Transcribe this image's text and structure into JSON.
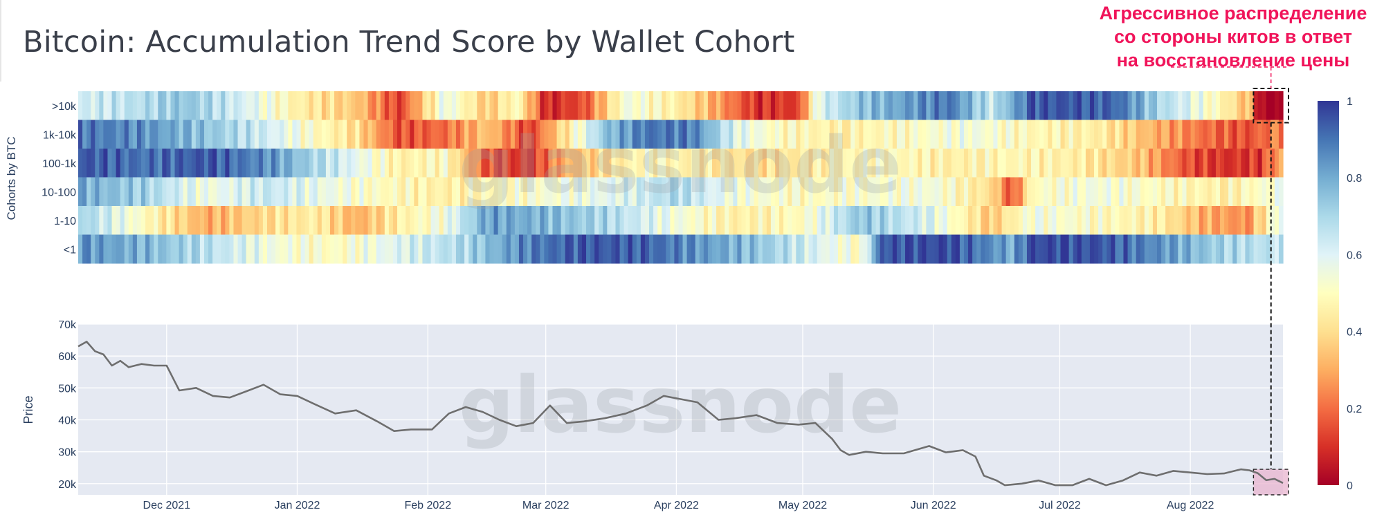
{
  "title": "Bitcoin: Accumulation Trend Score by Wallet Cohort",
  "annotation": {
    "lines": [
      "Агрессивное распределение",
      "со стороны китов в ответ",
      "на восстановление цены"
    ],
    "color": "#f0145a"
  },
  "watermark": "glassnode",
  "colors": {
    "price_line": "#6e6e6e",
    "price_bg": "#e5e9f2",
    "highlight_fill": "#e8b4cf",
    "scale_stops": [
      "#a50026",
      "#d73027",
      "#f46d43",
      "#fdae61",
      "#fee090",
      "#ffffbf",
      "#e0f3f8",
      "#abd9e9",
      "#74add1",
      "#4575b4",
      "#313695"
    ]
  },
  "chart_data": [
    {
      "type": "heatmap",
      "ylabel": "Cohorts by BTC",
      "rows": [
        ">10k",
        "1k-10k",
        "100-1k",
        "10-100",
        "1-10",
        "<1"
      ],
      "x_range": [
        "2021-11-10",
        "2022-08-23"
      ],
      "x_ticks": [
        "Dec 2021",
        "Jan 2022",
        "Feb 2022",
        "Mar 2022",
        "Apr 2022",
        "May 2022",
        "Jun 2022",
        "Jul 2022",
        "Aug 2022"
      ],
      "colorscale": "RdYlBu",
      "zlim": [
        0,
        1
      ],
      "colorbar_ticks": [
        "0",
        "0.2",
        "0.4",
        "0.6",
        "0.8",
        "1"
      ],
      "segments": [
        {
          "row": ">10k",
          "points": [
            [
              "2021-11-10",
              0.62
            ],
            [
              "2021-11-25",
              0.68
            ],
            [
              "2021-12-05",
              0.75
            ],
            [
              "2021-12-20",
              0.6
            ],
            [
              "2022-01-01",
              0.45
            ],
            [
              "2022-01-15",
              0.35
            ],
            [
              "2022-01-25",
              0.12
            ],
            [
              "2022-02-05",
              0.58
            ],
            [
              "2022-02-15",
              0.35
            ],
            [
              "2022-02-22",
              0.5
            ],
            [
              "2022-03-01",
              0.08
            ],
            [
              "2022-03-10",
              0.15
            ],
            [
              "2022-03-20",
              0.55
            ],
            [
              "2022-04-01",
              0.45
            ],
            [
              "2022-04-10",
              0.3
            ],
            [
              "2022-04-20",
              0.1
            ],
            [
              "2022-04-30",
              0.12
            ],
            [
              "2022-05-05",
              0.6
            ],
            [
              "2022-05-15",
              0.75
            ],
            [
              "2022-05-25",
              0.82
            ],
            [
              "2022-06-05",
              0.9
            ],
            [
              "2022-06-15",
              0.65
            ],
            [
              "2022-06-25",
              0.95
            ],
            [
              "2022-07-05",
              0.95
            ],
            [
              "2022-07-15",
              0.92
            ],
            [
              "2022-07-25",
              0.7
            ],
            [
              "2022-08-01",
              0.6
            ],
            [
              "2022-08-10",
              0.45
            ],
            [
              "2022-08-16",
              0.3
            ],
            [
              "2022-08-18",
              0.0
            ],
            [
              "2022-08-23",
              0.0
            ]
          ]
        },
        {
          "row": "1k-10k",
          "points": [
            [
              "2021-11-10",
              0.9
            ],
            [
              "2021-11-25",
              0.85
            ],
            [
              "2021-12-10",
              0.75
            ],
            [
              "2021-12-25",
              0.62
            ],
            [
              "2022-01-05",
              0.5
            ],
            [
              "2022-01-15",
              0.4
            ],
            [
              "2022-01-25",
              0.15
            ],
            [
              "2022-02-05",
              0.2
            ],
            [
              "2022-02-15",
              0.35
            ],
            [
              "2022-02-25",
              0.12
            ],
            [
              "2022-03-05",
              0.4
            ],
            [
              "2022-03-15",
              0.75
            ],
            [
              "2022-03-25",
              0.9
            ],
            [
              "2022-04-05",
              0.88
            ],
            [
              "2022-04-15",
              0.6
            ],
            [
              "2022-04-25",
              0.5
            ],
            [
              "2022-05-10",
              0.45
            ],
            [
              "2022-05-25",
              0.5
            ],
            [
              "2022-06-10",
              0.55
            ],
            [
              "2022-06-25",
              0.48
            ],
            [
              "2022-07-10",
              0.45
            ],
            [
              "2022-07-25",
              0.3
            ],
            [
              "2022-08-05",
              0.2
            ],
            [
              "2022-08-15",
              0.15
            ],
            [
              "2022-08-23",
              0.25
            ]
          ]
        },
        {
          "row": "100-1k",
          "points": [
            [
              "2021-11-10",
              0.95
            ],
            [
              "2021-11-25",
              0.9
            ],
            [
              "2021-12-10",
              0.95
            ],
            [
              "2021-12-25",
              0.85
            ],
            [
              "2022-01-05",
              0.7
            ],
            [
              "2022-01-15",
              0.58
            ],
            [
              "2022-01-25",
              0.45
            ],
            [
              "2022-02-05",
              0.5
            ],
            [
              "2022-02-15",
              0.15
            ],
            [
              "2022-02-25",
              0.1
            ],
            [
              "2022-03-05",
              0.3
            ],
            [
              "2022-03-15",
              0.4
            ],
            [
              "2022-03-25",
              0.5
            ],
            [
              "2022-04-05",
              0.45
            ],
            [
              "2022-04-20",
              0.4
            ],
            [
              "2022-05-05",
              0.45
            ],
            [
              "2022-05-20",
              0.5
            ],
            [
              "2022-06-05",
              0.45
            ],
            [
              "2022-06-20",
              0.48
            ],
            [
              "2022-07-05",
              0.45
            ],
            [
              "2022-07-20",
              0.35
            ],
            [
              "2022-08-01",
              0.15
            ],
            [
              "2022-08-10",
              0.1
            ],
            [
              "2022-08-18",
              0.12
            ],
            [
              "2022-08-23",
              0.3
            ]
          ]
        },
        {
          "row": "10-100",
          "points": [
            [
              "2021-11-10",
              0.8
            ],
            [
              "2021-11-25",
              0.72
            ],
            [
              "2021-12-10",
              0.55
            ],
            [
              "2021-12-25",
              0.65
            ],
            [
              "2022-01-05",
              0.58
            ],
            [
              "2022-01-20",
              0.5
            ],
            [
              "2022-02-05",
              0.45
            ],
            [
              "2022-02-20",
              0.5
            ],
            [
              "2022-03-05",
              0.55
            ],
            [
              "2022-03-20",
              0.6
            ],
            [
              "2022-04-01",
              0.7
            ],
            [
              "2022-04-15",
              0.55
            ],
            [
              "2022-05-01",
              0.5
            ],
            [
              "2022-05-15",
              0.52
            ],
            [
              "2022-06-01",
              0.55
            ],
            [
              "2022-06-15",
              0.4
            ],
            [
              "2022-06-20",
              0.15
            ],
            [
              "2022-06-25",
              0.5
            ],
            [
              "2022-07-10",
              0.55
            ],
            [
              "2022-07-25",
              0.5
            ],
            [
              "2022-08-10",
              0.45
            ],
            [
              "2022-08-23",
              0.55
            ]
          ]
        },
        {
          "row": "1-10",
          "points": [
            [
              "2021-11-10",
              0.72
            ],
            [
              "2021-11-25",
              0.5
            ],
            [
              "2021-12-10",
              0.3
            ],
            [
              "2021-12-25",
              0.4
            ],
            [
              "2022-01-05",
              0.45
            ],
            [
              "2022-01-15",
              0.3
            ],
            [
              "2022-01-25",
              0.45
            ],
            [
              "2022-02-05",
              0.55
            ],
            [
              "2022-02-15",
              0.82
            ],
            [
              "2022-03-01",
              0.78
            ],
            [
              "2022-03-15",
              0.7
            ],
            [
              "2022-04-01",
              0.55
            ],
            [
              "2022-04-15",
              0.45
            ],
            [
              "2022-05-01",
              0.5
            ],
            [
              "2022-05-15",
              0.75
            ],
            [
              "2022-06-01",
              0.6
            ],
            [
              "2022-06-15",
              0.35
            ],
            [
              "2022-06-25",
              0.55
            ],
            [
              "2022-07-10",
              0.5
            ],
            [
              "2022-07-25",
              0.45
            ],
            [
              "2022-08-05",
              0.3
            ],
            [
              "2022-08-15",
              0.25
            ],
            [
              "2022-08-23",
              0.6
            ]
          ]
        },
        {
          "row": "<1",
          "points": [
            [
              "2021-11-10",
              0.85
            ],
            [
              "2021-11-25",
              0.78
            ],
            [
              "2021-12-10",
              0.68
            ],
            [
              "2021-12-25",
              0.55
            ],
            [
              "2022-01-10",
              0.5
            ],
            [
              "2022-01-25",
              0.6
            ],
            [
              "2022-02-10",
              0.7
            ],
            [
              "2022-02-25",
              0.88
            ],
            [
              "2022-03-10",
              0.95
            ],
            [
              "2022-03-25",
              0.93
            ],
            [
              "2022-04-05",
              0.85
            ],
            [
              "2022-04-20",
              0.75
            ],
            [
              "2022-05-05",
              0.6
            ],
            [
              "2022-05-15",
              0.5
            ],
            [
              "2022-05-20",
              0.95
            ],
            [
              "2022-06-05",
              0.97
            ],
            [
              "2022-06-20",
              0.8
            ],
            [
              "2022-06-25",
              0.97
            ],
            [
              "2022-07-10",
              0.96
            ],
            [
              "2022-07-25",
              0.85
            ],
            [
              "2022-08-10",
              0.7
            ],
            [
              "2022-08-23",
              0.65
            ]
          ]
        }
      ]
    },
    {
      "type": "line",
      "ylabel": "Price",
      "yticks": [
        "20k",
        "30k",
        "40k",
        "50k",
        "60k",
        "70k"
      ],
      "ylim": [
        16500,
        70000
      ],
      "x_ticks": [
        "Dec 2021",
        "Jan 2022",
        "Feb 2022",
        "Mar 2022",
        "Apr 2022",
        "May 2022",
        "Jun 2022",
        "Jul 2022",
        "Aug 2022"
      ],
      "highlight": {
        "x": [
          "2022-08-16",
          "2022-08-23"
        ],
        "y": [
          16500,
          24500
        ]
      },
      "series": [
        {
          "x": [
            "2021-11-10",
            "2021-11-12",
            "2021-11-14",
            "2021-11-16",
            "2021-11-18",
            "2021-11-20",
            "2021-11-22",
            "2021-11-25",
            "2021-11-28",
            "2021-12-01",
            "2021-12-04",
            "2021-12-08",
            "2021-12-12",
            "2021-12-16",
            "2021-12-20",
            "2021-12-24",
            "2021-12-28",
            "2022-01-01",
            "2022-01-05",
            "2022-01-10",
            "2022-01-15",
            "2022-01-20",
            "2022-01-24",
            "2022-01-28",
            "2022-02-02",
            "2022-02-06",
            "2022-02-10",
            "2022-02-14",
            "2022-02-18",
            "2022-02-22",
            "2022-02-26",
            "2022-03-02",
            "2022-03-06",
            "2022-03-10",
            "2022-03-15",
            "2022-03-20",
            "2022-03-25",
            "2022-03-29",
            "2022-04-02",
            "2022-04-06",
            "2022-04-11",
            "2022-04-15",
            "2022-04-20",
            "2022-04-25",
            "2022-04-30",
            "2022-05-04",
            "2022-05-08",
            "2022-05-10",
            "2022-05-12",
            "2022-05-16",
            "2022-05-20",
            "2022-05-25",
            "2022-05-31",
            "2022-06-04",
            "2022-06-08",
            "2022-06-11",
            "2022-06-13",
            "2022-06-16",
            "2022-06-18",
            "2022-06-22",
            "2022-06-26",
            "2022-06-30",
            "2022-07-04",
            "2022-07-08",
            "2022-07-12",
            "2022-07-16",
            "2022-07-20",
            "2022-07-24",
            "2022-07-28",
            "2022-08-01",
            "2022-08-05",
            "2022-08-09",
            "2022-08-13",
            "2022-08-15",
            "2022-08-17",
            "2022-08-19",
            "2022-08-21",
            "2022-08-23"
          ],
          "y": [
            63000,
            64500,
            61500,
            60500,
            57000,
            58500,
            56500,
            57500,
            57000,
            57000,
            49200,
            50000,
            47500,
            47000,
            49000,
            51000,
            48000,
            47500,
            45000,
            42000,
            43000,
            39500,
            36500,
            37000,
            37000,
            42000,
            44000,
            42500,
            40000,
            38000,
            39000,
            44500,
            39000,
            39500,
            40500,
            42000,
            44500,
            47500,
            46500,
            45500,
            40000,
            40500,
            41500,
            39000,
            38500,
            39000,
            34000,
            30500,
            29000,
            30000,
            29500,
            29500,
            31800,
            29800,
            30500,
            28500,
            22500,
            21000,
            19500,
            20000,
            21000,
            19500,
            19500,
            21500,
            19500,
            21000,
            23500,
            22500,
            24000,
            23500,
            23000,
            23200,
            24500,
            24200,
            23300,
            21100,
            21500,
            20200
          ]
        }
      ]
    }
  ]
}
